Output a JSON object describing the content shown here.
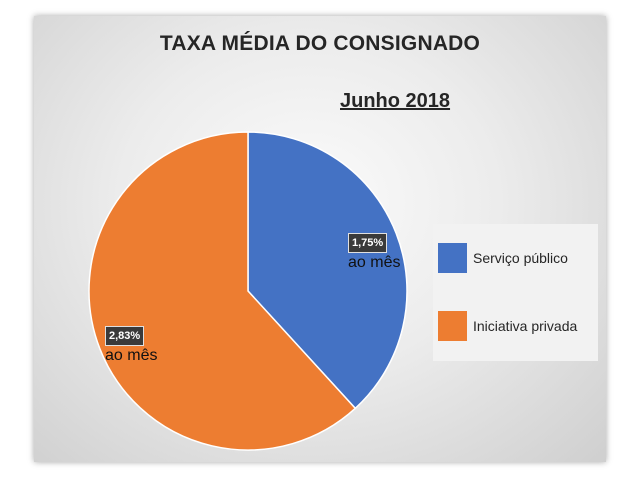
{
  "chart_data": {
    "type": "pie",
    "title": "TAXA MÉDIA DO CONSIGNADO",
    "subtitle": "Junho 2018",
    "categories": [
      "Serviço público",
      "Iniciativa privada"
    ],
    "values": [
      1.75,
      2.83
    ],
    "data_labels": [
      "1,75%",
      "2,83%"
    ],
    "label_suffix": "ao mês",
    "colors": [
      "#4472c4",
      "#ed7d31"
    ],
    "legend_position": "right"
  }
}
